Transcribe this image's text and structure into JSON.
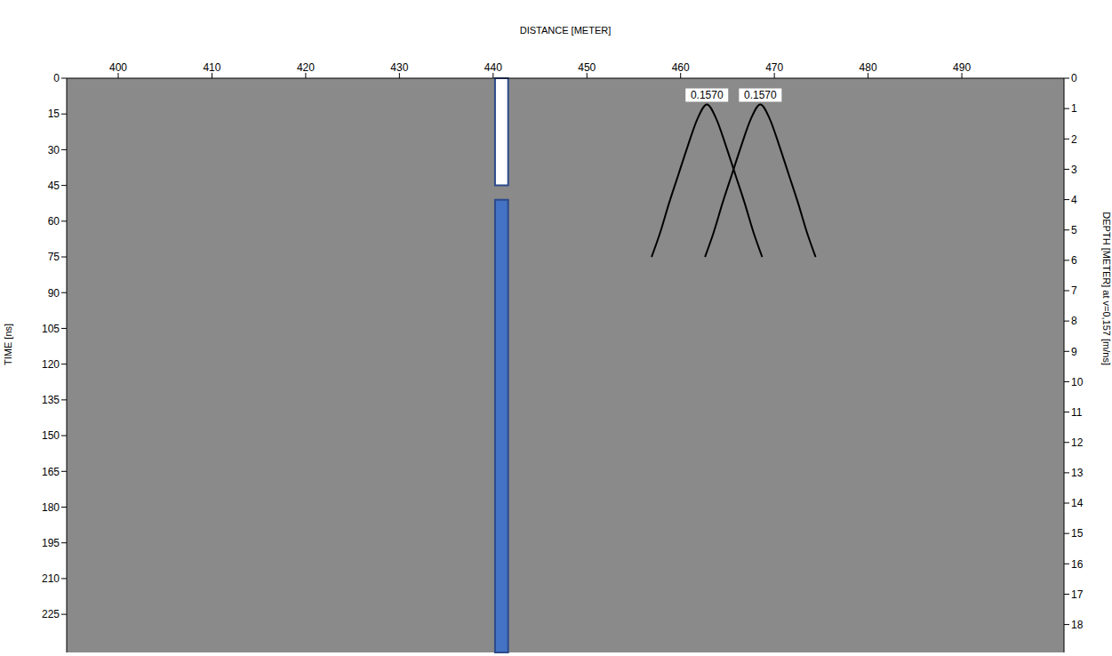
{
  "chart_data": {
    "type": "line",
    "xlabel": "DISTANCE [METER]",
    "ylabel": "TIME [ns]",
    "y2label": "DEPTH [METER] at v=0,157 [m/ns]",
    "xlim": [
      394.5,
      500.9
    ],
    "xticks": [
      400,
      410,
      420,
      430,
      440,
      450,
      460,
      470,
      480,
      490
    ],
    "ylim": [
      0,
      241
    ],
    "yticks": [
      0,
      15,
      30,
      45,
      60,
      75,
      90,
      105,
      120,
      135,
      150,
      165,
      180,
      195,
      210,
      225
    ],
    "y2lim": [
      0,
      18.92
    ],
    "y2ticks": [
      0,
      1,
      2,
      3,
      4,
      5,
      6,
      7,
      8,
      9,
      10,
      11,
      12,
      13,
      14,
      15,
      16,
      17,
      18
    ],
    "grid": false,
    "series": [
      {
        "color": "#000000",
        "x": [
          456.9,
          457.8,
          458.8,
          459.8,
          460.8,
          461.8,
          462.8,
          463.8,
          464.8,
          465.8,
          466.8,
          467.8,
          468.7
        ],
        "values": [
          75,
          65,
          52,
          40,
          28,
          17,
          11,
          17,
          28,
          40,
          52,
          65,
          75
        ]
      },
      {
        "color": "#000000",
        "x": [
          462.6,
          463.5,
          464.5,
          465.5,
          466.5,
          467.5,
          468.5,
          469.5,
          470.5,
          471.5,
          472.5,
          473.5,
          474.4
        ],
        "values": [
          75,
          65,
          52,
          40,
          28,
          17,
          11,
          17,
          28,
          40,
          52,
          65,
          75
        ]
      }
    ],
    "annotations": [
      {
        "text": "0.1570",
        "x": 462.8,
        "y": 11
      },
      {
        "text": "0.1570",
        "x": 468.5,
        "y": 11
      }
    ],
    "well_marker": {
      "x": 440.9,
      "segments": [
        {
          "from": 0,
          "to": 45,
          "color": "#ffffff"
        },
        {
          "from": 51,
          "to": 241,
          "color": "#4472c4"
        }
      ]
    }
  }
}
